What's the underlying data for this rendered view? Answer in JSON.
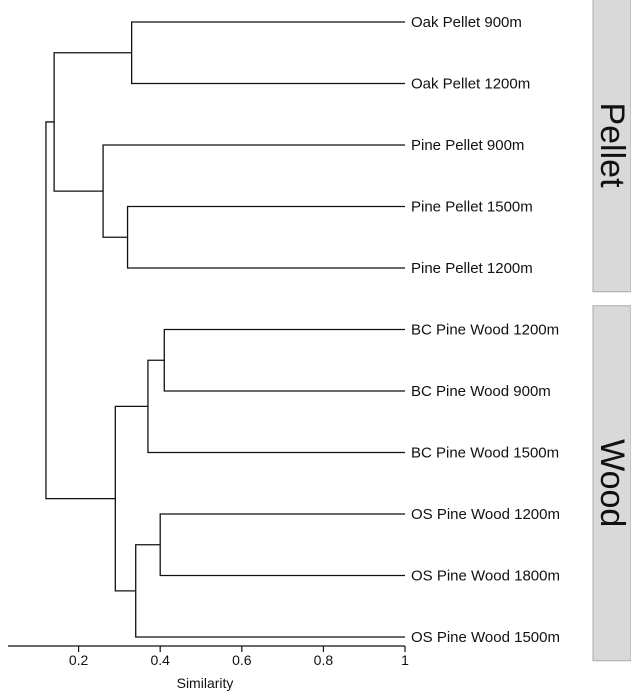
{
  "chart_data": {
    "type": "dendrogram",
    "xlabel": "Similarity",
    "xlim": [
      0,
      1
    ],
    "xticks": [
      0.2,
      0.4,
      0.6,
      0.8,
      1
    ],
    "xtick_labels": [
      "0.2",
      "0.4",
      "0.6",
      "0.8",
      "1"
    ],
    "leaves": [
      "Oak Pellet 900m",
      "Oak Pellet 1200m",
      "Pine Pellet 900m",
      "Pine Pellet 1500m",
      "Pine Pellet 1200m",
      "BC Pine Wood 1200m",
      "BC Pine Wood 900m",
      "BC Pine Wood 1500m",
      "OS Pine Wood 1200m",
      "OS Pine Wood 1800m",
      "OS Pine Wood 1500m"
    ],
    "merges": [
      {
        "children": [
          "L0",
          "L1"
        ],
        "similarity": 0.33
      },
      {
        "children": [
          "L3",
          "L4"
        ],
        "similarity": 0.32
      },
      {
        "children": [
          "L2",
          "M1"
        ],
        "similarity": 0.26
      },
      {
        "children": [
          "M0",
          "M2"
        ],
        "similarity": 0.14
      },
      {
        "children": [
          "L5",
          "L6"
        ],
        "similarity": 0.41
      },
      {
        "children": [
          "M4",
          "L7"
        ],
        "similarity": 0.37
      },
      {
        "children": [
          "L8",
          "L9"
        ],
        "similarity": 0.4
      },
      {
        "children": [
          "M6",
          "L10"
        ],
        "similarity": 0.34
      },
      {
        "children": [
          "M5",
          "M7"
        ],
        "similarity": 0.29
      },
      {
        "children": [
          "M3",
          "M8"
        ],
        "similarity": 0.12
      }
    ],
    "groups": [
      {
        "label": "Pellet",
        "leaves": [
          0,
          4
        ]
      },
      {
        "label": "Wood",
        "leaves": [
          5,
          10
        ]
      }
    ]
  }
}
